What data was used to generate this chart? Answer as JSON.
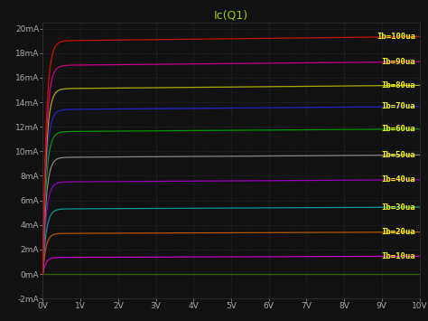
{
  "title": "Ic(Q1)",
  "bg_color": "#111111",
  "grid_color": "#404040",
  "title_color": "#99cc00",
  "tick_color": "#aaaaaa",
  "xlim": [
    0,
    10
  ],
  "ylim": [
    -0.002,
    0.0205
  ],
  "xticks": [
    0,
    1,
    2,
    3,
    4,
    5,
    6,
    7,
    8,
    9,
    10
  ],
  "yticks": [
    -0.002,
    0.0,
    0.002,
    0.004,
    0.006,
    0.008,
    0.01,
    0.012,
    0.014,
    0.016,
    0.018,
    0.02
  ],
  "ytick_labels": [
    "-2mA",
    "0mA",
    "2mA",
    "4mA",
    "6mA",
    "8mA",
    "10mA",
    "12mA",
    "14mA",
    "16mA",
    "18mA",
    "20mA"
  ],
  "xtick_labels": [
    "0V",
    "1V",
    "2V",
    "3V",
    "4V",
    "5V",
    "6V",
    "7V",
    "8V",
    "9V",
    "10V"
  ],
  "curves": [
    {
      "Ib_ua": 10,
      "Ic_sat": 0.00135,
      "slope": 1e-05,
      "knee": 0.08,
      "color": "#cc00cc"
    },
    {
      "Ib_ua": 20,
      "Ic_sat": 0.0033,
      "slope": 1.2e-05,
      "knee": 0.08,
      "color": "#bb5500"
    },
    {
      "Ib_ua": 30,
      "Ic_sat": 0.0053,
      "slope": 1.5e-05,
      "knee": 0.09,
      "color": "#009999"
    },
    {
      "Ib_ua": 40,
      "Ic_sat": 0.0075,
      "slope": 1.8e-05,
      "knee": 0.09,
      "color": "#9900bb"
    },
    {
      "Ib_ua": 50,
      "Ic_sat": 0.0095,
      "slope": 2e-05,
      "knee": 0.09,
      "color": "#888888"
    },
    {
      "Ib_ua": 60,
      "Ic_sat": 0.0116,
      "slope": 2.2e-05,
      "knee": 0.09,
      "color": "#009900"
    },
    {
      "Ib_ua": 70,
      "Ic_sat": 0.0134,
      "slope": 2.5e-05,
      "knee": 0.09,
      "color": "#2222cc"
    },
    {
      "Ib_ua": 80,
      "Ic_sat": 0.0151,
      "slope": 2.8e-05,
      "knee": 0.09,
      "color": "#aaaa00"
    },
    {
      "Ib_ua": 90,
      "Ic_sat": 0.017,
      "slope": 3e-05,
      "knee": 0.09,
      "color": "#cc0088"
    },
    {
      "Ib_ua": 100,
      "Ic_sat": 0.019,
      "slope": 3.5e-05,
      "knee": 0.09,
      "color": "#cc1100"
    }
  ],
  "zero_color": "#336600",
  "label_color": "#ffff00",
  "label_fontsize": 6.5,
  "title_fontsize": 9,
  "linewidth": 0.9
}
